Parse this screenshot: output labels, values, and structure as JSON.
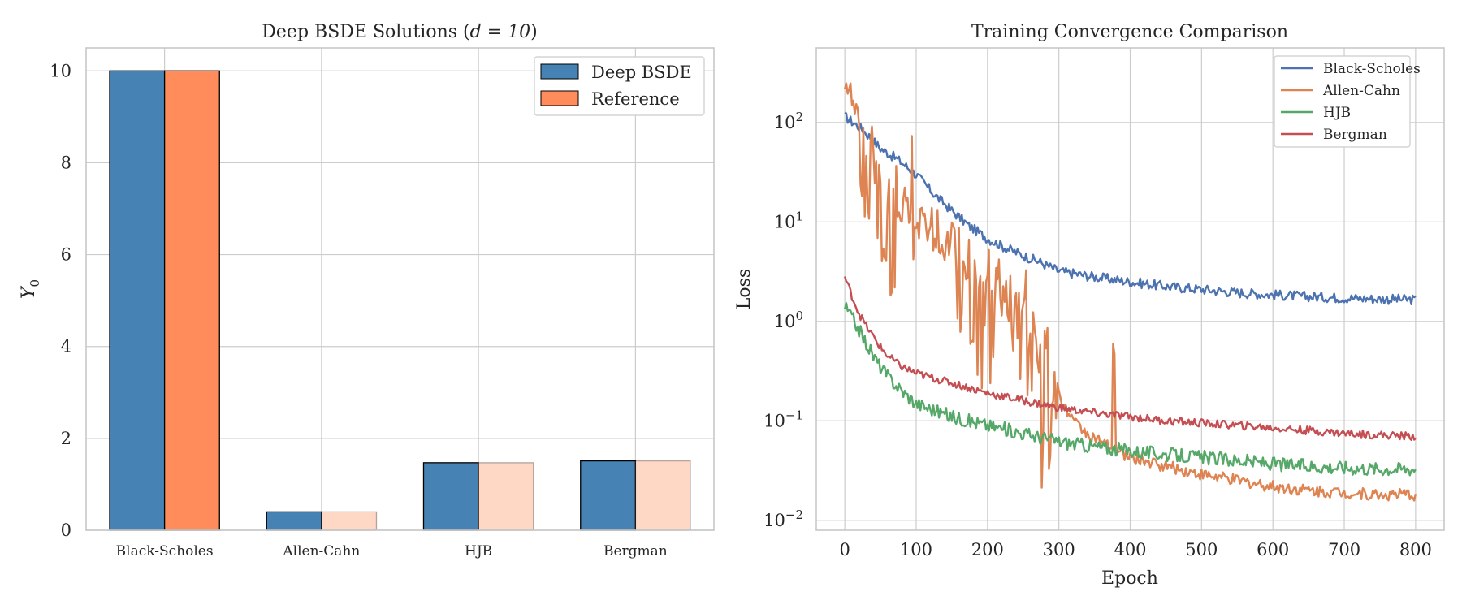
{
  "chart_data": [
    {
      "type": "bar",
      "title_prefix": "Deep BSDE Solutions (",
      "title_math": "d = 10",
      "title_suffix": ")",
      "xlabel": "",
      "ylabel": "Y",
      "ylabel_subscript": "0",
      "categories": [
        "Black-Scholes",
        "Allen-Cahn",
        "HJB",
        "Bergman"
      ],
      "ylim": [
        0,
        10.5
      ],
      "yticks": [
        "0",
        "2",
        "4",
        "6",
        "8",
        "10"
      ],
      "grid": true,
      "legend_position": "top-right",
      "series": [
        {
          "name": "Deep BSDE",
          "values": [
            10.0,
            0.4,
            1.47,
            1.51
          ],
          "color": "#4682b4",
          "opacity": [
            1,
            1,
            1,
            1
          ]
        },
        {
          "name": "Reference",
          "values": [
            10.0,
            0.4,
            1.47,
            1.51
          ],
          "color": "#ff8c5a",
          "opacity": [
            1,
            0.35,
            0.35,
            0.35
          ]
        }
      ]
    },
    {
      "type": "line",
      "title": "Training Convergence Comparison",
      "xlabel": "Epoch",
      "ylabel": "Loss",
      "xlim": [
        -40,
        840
      ],
      "ylim_log10": [
        -2.1,
        2.75
      ],
      "yscale": "log",
      "xticks": [
        "0",
        "100",
        "200",
        "300",
        "400",
        "500",
        "600",
        "700",
        "800"
      ],
      "yticks": [
        {
          "base": "10",
          "exp": "2"
        },
        {
          "base": "10",
          "exp": "1"
        },
        {
          "base": "10",
          "exp": "0"
        },
        {
          "base": "10",
          "exp": "−1"
        },
        {
          "base": "10",
          "exp": "−2"
        }
      ],
      "grid": true,
      "legend_position": "top-right",
      "series": [
        {
          "name": "Black-Scholes",
          "color": "#4c72b0",
          "x": [
            0,
            25,
            50,
            75,
            100,
            125,
            150,
            175,
            200,
            225,
            250,
            275,
            300,
            350,
            400,
            450,
            500,
            550,
            600,
            650,
            700,
            750,
            800
          ],
          "y": [
            115,
            85,
            55,
            42,
            30,
            19,
            13,
            9,
            6.8,
            5.5,
            4.6,
            3.9,
            3.2,
            2.8,
            2.5,
            2.25,
            2.1,
            1.95,
            1.85,
            1.78,
            1.72,
            1.68,
            1.65
          ]
        },
        {
          "name": "Allen-Cahn",
          "color": "#dd8452",
          "x": [
            0,
            10,
            20,
            30,
            40,
            50,
            60,
            80,
            100,
            120,
            140,
            160,
            180,
            200,
            220,
            240,
            260,
            280,
            300,
            320,
            340,
            360,
            380,
            400,
            450,
            500,
            550,
            600,
            650,
            700,
            750,
            800
          ],
          "y": [
            300,
            160,
            90,
            55,
            35,
            25,
            20,
            14,
            11,
            9,
            7,
            5.5,
            4,
            3,
            2,
            1.3,
            0.8,
            0.4,
            0.18,
            0.1,
            0.075,
            0.06,
            0.05,
            0.043,
            0.035,
            0.029,
            0.025,
            0.022,
            0.02,
            0.019,
            0.018,
            0.018
          ]
        },
        {
          "name": "HJB",
          "color": "#55a868",
          "x": [
            0,
            10,
            20,
            30,
            40,
            50,
            60,
            80,
            100,
            150,
            200,
            250,
            300,
            350,
            400,
            450,
            500,
            550,
            600,
            650,
            700,
            750,
            800
          ],
          "y": [
            1.4,
            1.1,
            0.82,
            0.6,
            0.45,
            0.35,
            0.28,
            0.2,
            0.15,
            0.11,
            0.09,
            0.075,
            0.062,
            0.055,
            0.05,
            0.046,
            0.043,
            0.04,
            0.037,
            0.035,
            0.034,
            0.033,
            0.033
          ]
        },
        {
          "name": "Bergman",
          "color": "#c44e52",
          "x": [
            0,
            10,
            20,
            30,
            40,
            50,
            60,
            80,
            100,
            150,
            200,
            250,
            300,
            350,
            400,
            450,
            500,
            550,
            600,
            650,
            700,
            750,
            800
          ],
          "y": [
            2.8,
            1.8,
            1.2,
            0.9,
            0.7,
            0.55,
            0.45,
            0.35,
            0.3,
            0.24,
            0.19,
            0.16,
            0.135,
            0.12,
            0.11,
            0.1,
            0.095,
            0.09,
            0.085,
            0.08,
            0.075,
            0.072,
            0.07
          ]
        }
      ]
    }
  ]
}
